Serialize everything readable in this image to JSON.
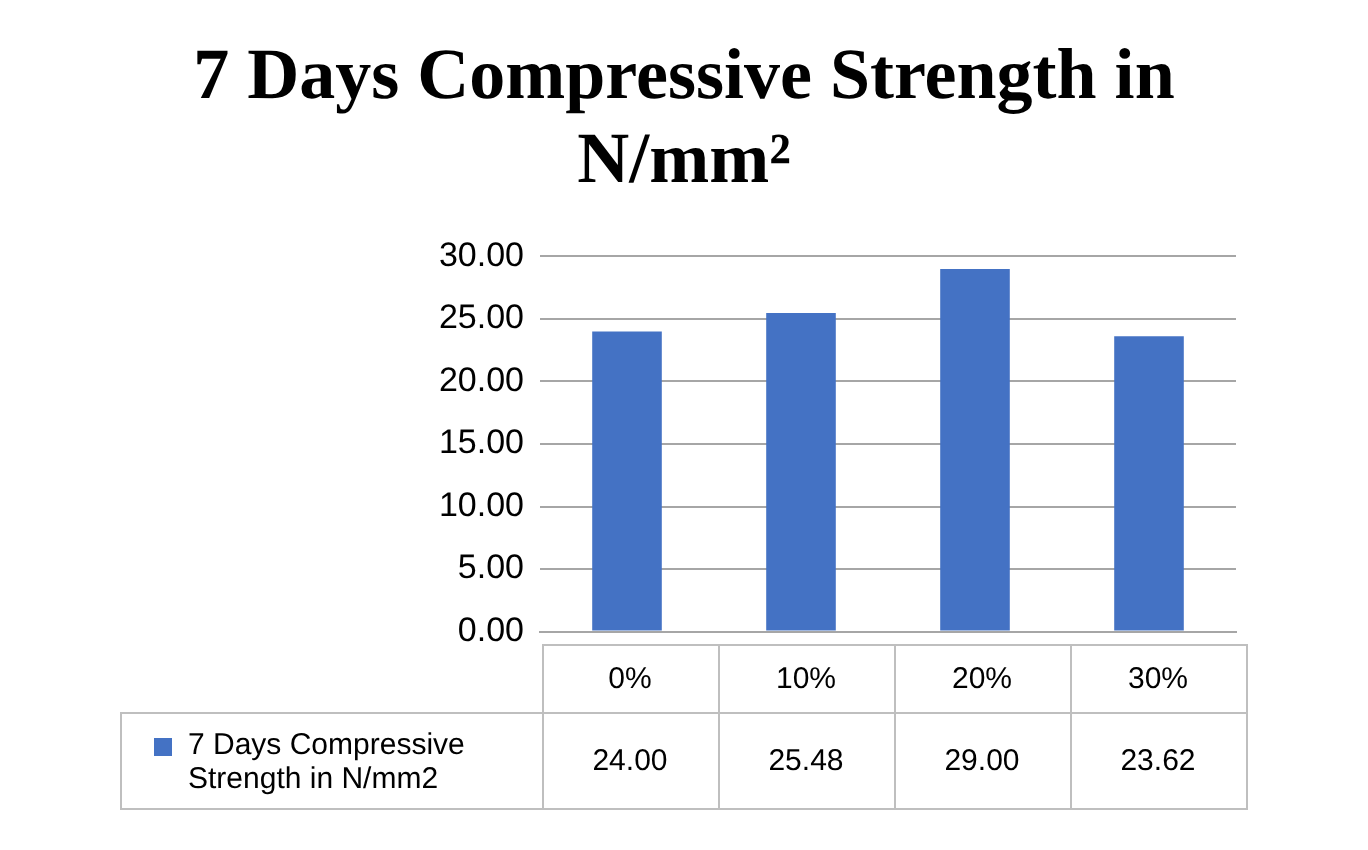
{
  "chart_data": {
    "type": "bar",
    "title": "7 Days Compressive Strength in N/mm²",
    "categories": [
      "0%",
      "10%",
      "20%",
      "30%"
    ],
    "series": [
      {
        "name": "7 Days Compressive Strength in N/mm2",
        "color": "#4472c4",
        "values": [
          24.0,
          25.48,
          29.0,
          23.62
        ],
        "value_labels": [
          "24.00",
          "25.48",
          "29.00",
          "23.62"
        ]
      }
    ],
    "ylim": [
      0,
      30
    ],
    "yticks": [
      {
        "value": 0,
        "label": "0.00"
      },
      {
        "value": 5,
        "label": "5.00"
      },
      {
        "value": 10,
        "label": "10.00"
      },
      {
        "value": 15,
        "label": "15.00"
      },
      {
        "value": 20,
        "label": "20.00"
      },
      {
        "value": 25,
        "label": "25.00"
      },
      {
        "value": 30,
        "label": "30.00"
      }
    ],
    "grid": "y",
    "legend": "bottom"
  }
}
